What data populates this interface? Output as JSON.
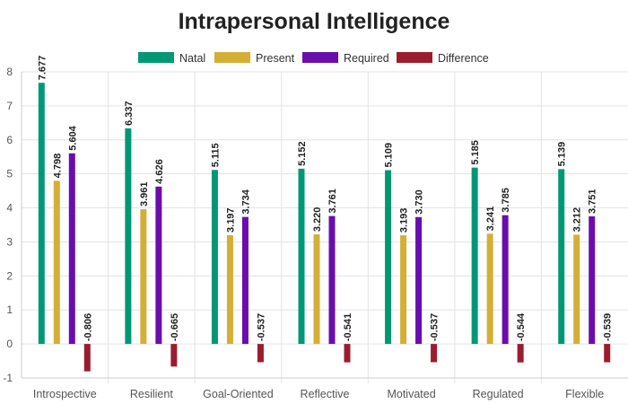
{
  "chart_data": {
    "type": "bar",
    "title": "Intrapersonal Intelligence",
    "categories": [
      "Introspective",
      "Resilient",
      "Goal-Oriented",
      "Reflective",
      "Motivated",
      "Regulated",
      "Flexible"
    ],
    "series": [
      {
        "name": "Natal",
        "color": "#009874",
        "values": [
          7.677,
          6.337,
          5.115,
          5.152,
          5.109,
          5.185,
          5.139
        ]
      },
      {
        "name": "Present",
        "color": "#d4af37",
        "values": [
          4.798,
          3.961,
          3.197,
          3.22,
          3.193,
          3.241,
          3.212
        ]
      },
      {
        "name": "Required",
        "color": "#6a0dad",
        "values": [
          5.604,
          4.626,
          3.734,
          3.761,
          3.73,
          3.785,
          3.751
        ]
      },
      {
        "name": "Difference",
        "color": "#9b1c2e",
        "values": [
          -0.806,
          -0.665,
          -0.537,
          -0.541,
          -0.537,
          -0.544,
          -0.539
        ]
      }
    ],
    "ylim": [
      -1,
      8
    ],
    "yticks": [
      -1,
      0,
      1,
      2,
      3,
      4,
      5,
      6,
      7,
      8
    ],
    "grid": true,
    "legend_position": "top-center",
    "data_labels": true
  }
}
